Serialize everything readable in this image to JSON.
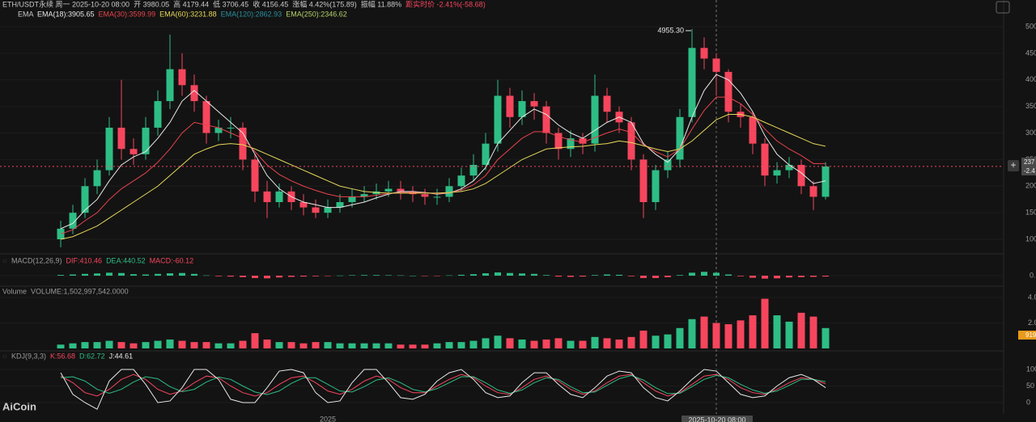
{
  "chart_data": {
    "type": "candlestick",
    "title": "ETH/USDT永续 周一 2025-10-20 08:00",
    "info": [
      {
        "text": "开 3980.05",
        "color": "#c8c8c8"
      },
      {
        "text": "高 4179.44",
        "color": "#c8c8c8"
      },
      {
        "text": "低 3706.45",
        "color": "#c8c8c8"
      },
      {
        "text": "收 4156.45",
        "color": "#c8c8c8"
      },
      {
        "text": "涨幅 4.42%(175.89)",
        "color": "#c8c8c8"
      },
      {
        "text": "振幅 11.88%",
        "color": "#c8c8c8"
      },
      {
        "text": "距实时价 -2.41%(-58.68)",
        "color": "#f6465d"
      }
    ],
    "indicator": "EMA",
    "up_color": "#2ebd85",
    "down_color": "#f6465d",
    "candles": {
      "open": [
        1000,
        1200,
        1500,
        2000,
        2300,
        3100,
        2700,
        2600,
        3100,
        3600,
        4200,
        3900,
        3600,
        3000,
        3100,
        3100,
        2500,
        1900,
        1700,
        1900,
        1700,
        1600,
        1500,
        1600,
        1700,
        1800,
        1850,
        1900,
        1950,
        1900,
        1850,
        1800,
        1800,
        2000,
        2200,
        2400,
        2800,
        3700,
        3300,
        3600,
        3500,
        3000,
        2700,
        2900,
        2800,
        3700,
        3400,
        3200,
        2500,
        1700,
        2300,
        2500,
        3300,
        4600,
        4400,
        4150,
        3400,
        3300,
        2800,
        2200,
        2300,
        2400,
        2000,
        1800
      ],
      "high": [
        1350,
        1650,
        2150,
        2500,
        3300,
        4000,
        2900,
        3300,
        3800,
        4850,
        4500,
        4100,
        3700,
        3250,
        3300,
        3200,
        2600,
        2100,
        2050,
        2000,
        1850,
        1750,
        1750,
        1850,
        1950,
        2000,
        2050,
        2100,
        2100,
        2000,
        1950,
        1950,
        2150,
        2350,
        2600,
        3000,
        4000,
        3850,
        3800,
        3750,
        3600,
        3100,
        3050,
        3000,
        4100,
        3850,
        3500,
        3300,
        2600,
        2400,
        2650,
        3450,
        4955.3,
        4800,
        4500,
        4200,
        3550,
        3400,
        2900,
        2450,
        2550,
        2500,
        2100,
        2450
      ],
      "low": [
        850,
        1100,
        1400,
        1850,
        2200,
        2500,
        2400,
        2500,
        2950,
        3450,
        3700,
        3400,
        2800,
        2850,
        2900,
        2300,
        1700,
        1400,
        1600,
        1550,
        1450,
        1400,
        1400,
        1500,
        1600,
        1700,
        1750,
        1800,
        1750,
        1700,
        1650,
        1650,
        1700,
        1900,
        2100,
        2300,
        2650,
        3100,
        3150,
        3250,
        2800,
        2500,
        2550,
        2600,
        2650,
        3200,
        3000,
        2300,
        1400,
        1550,
        2150,
        2350,
        3200,
        4200,
        3700,
        3200,
        3100,
        2600,
        2000,
        2050,
        2150,
        1850,
        1550,
        1750
      ],
      "close": [
        1200,
        1500,
        2000,
        2300,
        3100,
        2700,
        2600,
        3100,
        3600,
        4200,
        3900,
        3600,
        3000,
        3100,
        3100,
        2500,
        1900,
        1700,
        1900,
        1700,
        1600,
        1500,
        1600,
        1700,
        1800,
        1850,
        1900,
        1950,
        1900,
        1850,
        1800,
        1800,
        2000,
        2200,
        2400,
        2800,
        3700,
        3300,
        3600,
        3500,
        3000,
        2700,
        2900,
        2800,
        3700,
        3400,
        3200,
        2500,
        1700,
        2300,
        2500,
        3300,
        4600,
        4400,
        4150,
        3400,
        3300,
        2800,
        2200,
        2300,
        2400,
        2000,
        1800,
        2370
      ]
    },
    "series": [
      {
        "name": "EMA(18):3905.65",
        "color": "#e8e8e8",
        "values": [
          1200,
          1300,
          1550,
          1750,
          2100,
          2400,
          2550,
          2650,
          2900,
          3200,
          3600,
          3800,
          3600,
          3400,
          3200,
          3000,
          2600,
          2200,
          1950,
          1800,
          1700,
          1650,
          1600,
          1600,
          1650,
          1700,
          1780,
          1850,
          1900,
          1900,
          1880,
          1850,
          1870,
          1950,
          2100,
          2350,
          2800,
          3050,
          3300,
          3450,
          3350,
          3150,
          3000,
          2900,
          3050,
          3200,
          3300,
          3200,
          2800,
          2600,
          2450,
          2700,
          3300,
          3800,
          4100,
          4000,
          3750,
          3400,
          2950,
          2600,
          2400,
          2250,
          2050,
          2100
        ]
      },
      {
        "name": "EMA(30):3599.99",
        "color": "#e8434c",
        "values": [
          1100,
          1180,
          1350,
          1500,
          1750,
          1950,
          2100,
          2250,
          2450,
          2700,
          3000,
          3200,
          3150,
          3100,
          3000,
          2900,
          2650,
          2400,
          2220,
          2100,
          2000,
          1920,
          1850,
          1800,
          1800,
          1800,
          1830,
          1860,
          1880,
          1885,
          1875,
          1860,
          1875,
          1925,
          2025,
          2200,
          2500,
          2700,
          2900,
          3025,
          3025,
          2935,
          2870,
          2825,
          2915,
          3000,
          3075,
          3010,
          2780,
          2650,
          2550,
          2700,
          3075,
          3425,
          3675,
          3675,
          3550,
          3350,
          3075,
          2850,
          2700,
          2575,
          2425,
          2425
        ]
      },
      {
        "name": "EMA(60):3231.88",
        "color": "#e6d85a",
        "values": [
          1000,
          1050,
          1150,
          1250,
          1400,
          1550,
          1700,
          1850,
          2000,
          2200,
          2400,
          2600,
          2700,
          2780,
          2800,
          2780,
          2700,
          2600,
          2500,
          2400,
          2300,
          2200,
          2100,
          2000,
          1950,
          1900,
          1880,
          1870,
          1870,
          1870,
          1870,
          1870,
          1880,
          1900,
          1950,
          2050,
          2200,
          2350,
          2500,
          2600,
          2700,
          2720,
          2740,
          2750,
          2780,
          2800,
          2850,
          2820,
          2760,
          2700,
          2650,
          2700,
          2850,
          3050,
          3250,
          3350,
          3350,
          3300,
          3200,
          3100,
          3000,
          2900,
          2800,
          2750
        ]
      }
    ],
    "other_indicators": [
      {
        "text": "EMA(120):2862.93",
        "color": "#2a8fa0"
      },
      {
        "text": "EMA(250):2346.62",
        "color": "#b5d36a"
      }
    ],
    "annotation": "4955.30",
    "ylim": [
      757,
      5076
    ],
    "yticks": [
      5000,
      4500,
      4000,
      3500,
      3000,
      2500,
      2000,
      1500,
      1000
    ],
    "price_labels": [
      "237",
      "-2.4"
    ],
    "macd": {
      "title": [
        {
          "text": "MACD(12,26,9)",
          "color": "#9a9a9a"
        },
        {
          "text": "DIF:410.46",
          "color": "#f6465d"
        },
        {
          "text": "DEA:440.52",
          "color": "#2ebd85"
        },
        {
          "text": "MACD:-60.12",
          "color": "#f6465d"
        }
      ],
      "values": [
        50,
        80,
        120,
        150,
        200,
        180,
        100,
        80,
        120,
        160,
        180,
        120,
        20,
        -40,
        -60,
        -100,
        -160,
        -180,
        -120,
        -80,
        -60,
        -40,
        -20,
        10,
        30,
        40,
        40,
        30,
        20,
        0,
        -10,
        -10,
        20,
        60,
        100,
        160,
        220,
        180,
        150,
        120,
        40,
        -60,
        -80,
        -60,
        40,
        80,
        60,
        -40,
        -160,
        -160,
        -100,
        40,
        200,
        260,
        200,
        80,
        -40,
        -140,
        -200,
        -180,
        -120,
        -100,
        -80,
        -60
      ],
      "ylim": [
        -600,
        600
      ],
      "yticks": [
        {
          "value": 0,
          "label": "0."
        }
      ]
    },
    "volume": {
      "title": [
        {
          "text": "Volume",
          "color": "#9a9a9a"
        },
        {
          "text": "VOLUME:1,502,997,542.0000",
          "color": "#9a9a9a"
        }
      ],
      "values": [
        0.3,
        0.4,
        0.5,
        0.5,
        0.6,
        0.5,
        0.4,
        0.5,
        0.6,
        0.7,
        0.6,
        0.5,
        0.5,
        0.4,
        0.4,
        0.6,
        1.2,
        0.7,
        0.5,
        0.5,
        0.4,
        0.5,
        0.5,
        0.4,
        0.4,
        0.4,
        0.4,
        0.4,
        0.3,
        0.3,
        0.3,
        0.4,
        0.5,
        0.5,
        0.6,
        0.8,
        1.0,
        0.8,
        0.7,
        0.6,
        0.7,
        0.8,
        0.6,
        0.6,
        0.9,
        0.8,
        0.7,
        0.9,
        1.4,
        1.0,
        1.1,
        1.6,
        2.3,
        2.5,
        2.0,
        1.9,
        2.2,
        2.6,
        3.9,
        2.6,
        2.1,
        2.8,
        2.5,
        1.6
      ],
      "ylim": [
        0,
        4.76
      ],
      "yticks": [
        {
          "value": 4,
          "label": "4.0"
        },
        {
          "value": 2,
          "label": "2.0"
        }
      ],
      "current_label": "919"
    },
    "kdj": {
      "title": [
        {
          "text": "KDJ(9,3,3)",
          "color": "#9a9a9a"
        },
        {
          "text": "K:56.68",
          "color": "#f6465d"
        },
        {
          "text": "D:62.72",
          "color": "#2ebd85"
        },
        {
          "text": "J:44.61",
          "color": "#e8e8e8"
        }
      ],
      "series": [
        {
          "name": "K",
          "color": "#f6465d",
          "values": [
            80,
            60,
            30,
            20,
            40,
            70,
            85,
            70,
            40,
            25,
            35,
            60,
            80,
            75,
            50,
            30,
            20,
            30,
            55,
            75,
            80,
            60,
            35,
            25,
            40,
            65,
            80,
            70,
            45,
            30,
            30,
            50,
            70,
            85,
            75,
            50,
            30,
            25,
            45,
            70,
            80,
            65,
            40,
            25,
            35,
            60,
            80,
            85,
            60,
            35,
            20,
            30,
            55,
            80,
            85,
            70,
            45,
            30,
            25,
            40,
            60,
            75,
            70,
            57
          ]
        },
        {
          "name": "D",
          "color": "#2ebd85",
          "values": [
            75,
            78,
            65,
            40,
            28,
            40,
            62,
            78,
            72,
            48,
            33,
            40,
            62,
            77,
            70,
            50,
            32,
            24,
            35,
            58,
            75,
            75,
            55,
            35,
            32,
            48,
            68,
            75,
            60,
            40,
            32,
            42,
            60,
            78,
            78,
            60,
            38,
            28,
            38,
            60,
            75,
            70,
            48,
            30,
            32,
            52,
            72,
            82,
            68,
            45,
            27,
            28,
            48,
            70,
            82,
            75,
            55,
            38,
            28,
            35,
            52,
            70,
            70,
            63
          ]
        },
        {
          "name": "J",
          "color": "#e8e8e8",
          "values": [
            90,
            25,
            0,
            -20,
            65,
            100,
            100,
            55,
            0,
            5,
            45,
            100,
            100,
            70,
            10,
            0,
            0,
            45,
            95,
            100,
            90,
            30,
            0,
            5,
            60,
            100,
            100,
            60,
            15,
            10,
            25,
            65,
            90,
            100,
            70,
            30,
            15,
            20,
            60,
            90,
            90,
            55,
            25,
            15,
            45,
            80,
            95,
            90,
            45,
            15,
            5,
            35,
            70,
            100,
            95,
            60,
            25,
            15,
            20,
            50,
            75,
            85,
            70,
            45
          ]
        }
      ],
      "ylim": [
        -36.6,
        148.8
      ],
      "yticks": [
        100,
        50,
        0
      ]
    },
    "time_labels": [
      "2025"
    ],
    "hover_time": "2025-10-20 08:00",
    "watermark": "AiCoin"
  }
}
